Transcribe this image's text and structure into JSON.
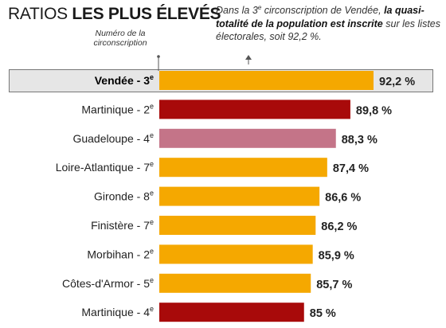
{
  "header": {
    "title_regular": "RATIOS",
    "title_bold": "LES PLUS ÉLEVÉS",
    "axis_note": "Numéro de la circonscription",
    "annotation": {
      "part1": "Dans la 3",
      "part1_sup": "e",
      "part2": " circonscription de Vendée, ",
      "bold": "la quasi-totalité de la population est inscrite",
      "part3": " sur les listes électorales, soit 92,2 %."
    }
  },
  "colors": {
    "Vendée": "#f5a800",
    "Martinique": "#a80a0a",
    "Guadeloupe": "#c47488",
    "default": "#f5a800",
    "highlight_bg": "#e6e6e6"
  },
  "chart_data": {
    "type": "bar",
    "orientation": "horizontal",
    "categories": [
      {
        "name": "Vendée",
        "sup": "e",
        "num": "3",
        "label": "Vendée - 3",
        "group": "Vendée",
        "highlight": true
      },
      {
        "name": "Martinique",
        "num": "2",
        "label": "Martinique - 2",
        "sup": "e",
        "group": "Martinique"
      },
      {
        "name": "Guadeloupe",
        "num": "4",
        "label": "Guadeloupe - 4",
        "sup": "e",
        "group": "Guadeloupe"
      },
      {
        "name": "Loire-Atlantique",
        "num": "7",
        "label": "Loire-Atlantique - 7",
        "sup": "e",
        "group": "default"
      },
      {
        "name": "Gironde",
        "num": "8",
        "label": "Gironde - 8",
        "sup": "e",
        "group": "default"
      },
      {
        "name": "Finistère",
        "num": "7",
        "label": "Finistère - 7",
        "sup": "e",
        "group": "default"
      },
      {
        "name": "Morbihan",
        "num": "2",
        "label": "Morbihan - 2",
        "sup": "e",
        "group": "default"
      },
      {
        "name": "Côtes-d'Armor",
        "num": "5",
        "label": "Côtes-d'Armor - 5",
        "sup": "e",
        "group": "default"
      },
      {
        "name": "Martinique",
        "num": "4",
        "label": "Martinique - 4",
        "sup": "e",
        "group": "Martinique"
      }
    ],
    "values": [
      92.2,
      89.8,
      88.3,
      87.4,
      86.6,
      86.2,
      85.9,
      85.7,
      85
    ],
    "value_labels": [
      "92,2 %",
      "89,8 %",
      "88,3 %",
      "87,4 %",
      "86,6 %",
      "86,2 %",
      "85,9 %",
      "85,7 %",
      "85 %"
    ],
    "xlim": [
      70,
      92.2
    ],
    "title": "RATIOS LES PLUS ÉLEVÉS",
    "xlabel": "",
    "ylabel": "",
    "grid": false
  }
}
